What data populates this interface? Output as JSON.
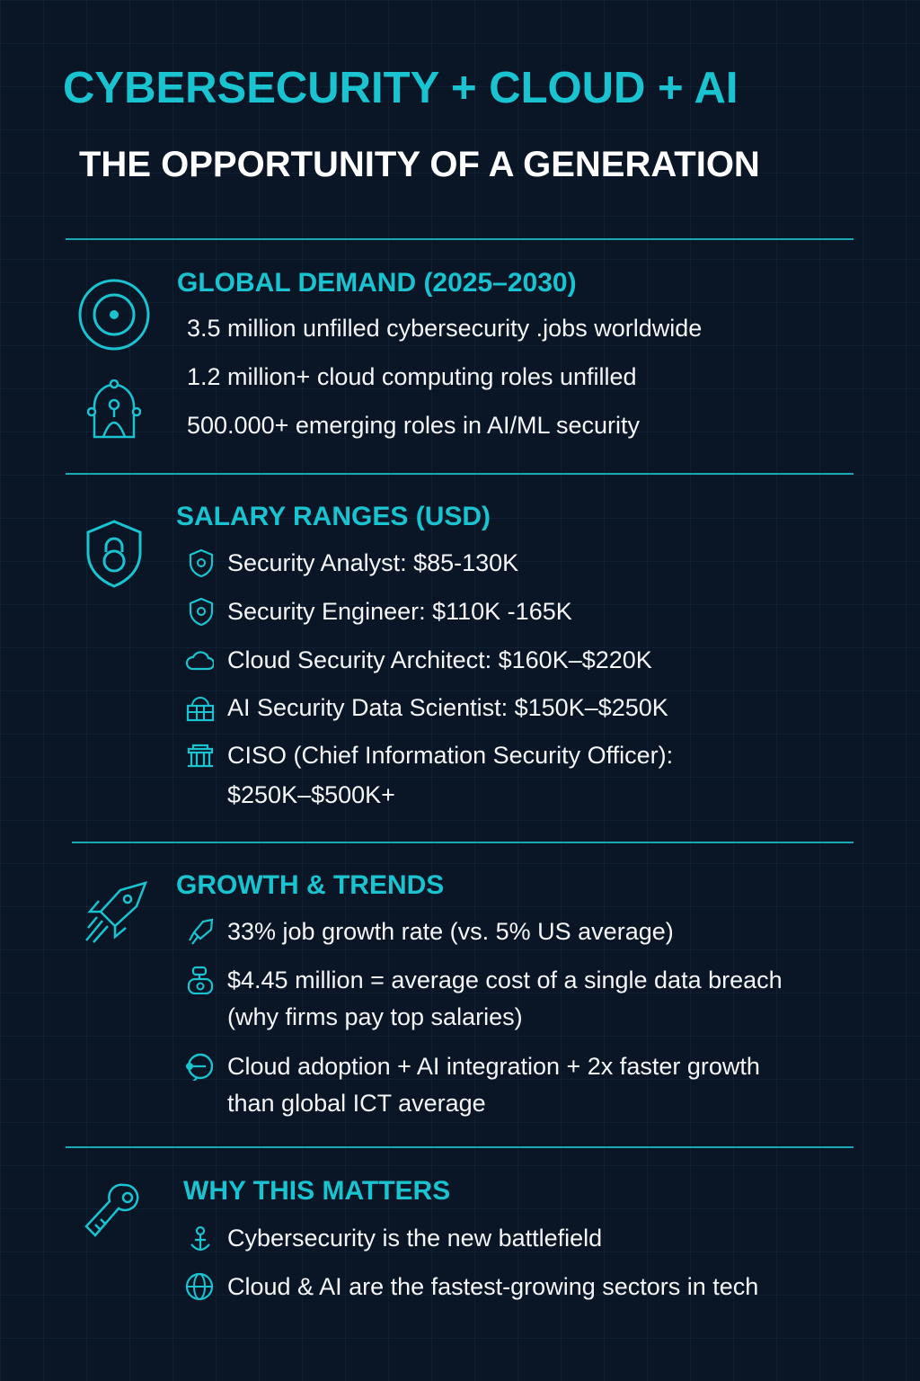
{
  "header": {
    "title": "CYBERSECURITY + CLOUD + AI",
    "subtitle": "THE OPPORTUNITY OF A GENERATION"
  },
  "sections": [
    {
      "heading": "GLOBAL DEMAND  (2025–2030)",
      "icon": "target-icon",
      "items": [
        {
          "text": "3.5 million unfilled cybersecurity .jobs worldwide"
        },
        {
          "text": "1.2 million+ cloud computing roles unfilled"
        },
        {
          "text": "500.000+ emerging roles in AI/ML security"
        }
      ]
    },
    {
      "heading": "SALARY RANGES (USD)",
      "icon": "shield-lock-icon",
      "items": [
        {
          "icon": "shield-icon",
          "text": "Security Analyst: $85-130K"
        },
        {
          "icon": "shield-icon",
          "text": "Security Engineer: $110K -165K"
        },
        {
          "icon": "cloud-icon",
          "text": "Cloud Security Architect: $160K–$220K"
        },
        {
          "icon": "database-icon",
          "text": "AI Security Data Scientist: $150K–$250K"
        },
        {
          "icon": "building-icon",
          "text": "CISO (Chief Information Security Officer):",
          "text2": "$250K–$500K+"
        }
      ]
    },
    {
      "heading": "GROWTH & TRENDS",
      "icon": "rocket-icon",
      "items": [
        {
          "icon": "rocket-icon",
          "text": "33% job growth rate (vs. 5% US average)"
        },
        {
          "icon": "alert-icon",
          "text": "$4.45 million = average cost of a single data breach",
          "text2": "(why firms pay top salaries)"
        },
        {
          "icon": "chat-icon",
          "text": "Cloud adoption + AI integration + 2x faster growth",
          "text2": "than global ICT average"
        }
      ]
    },
    {
      "heading": "WHY THIS MATTERS",
      "icon": "key-icon",
      "items": [
        {
          "icon": "anchor-icon",
          "text": "Cybersecurity is the new battlefield"
        },
        {
          "icon": "globe-icon",
          "text": "Cloud & AI are the fastest-growing sectors in tech"
        }
      ]
    }
  ],
  "colors": {
    "accent": "#19c3cf",
    "background": "#0a1526",
    "text": "#f4f6f8"
  }
}
